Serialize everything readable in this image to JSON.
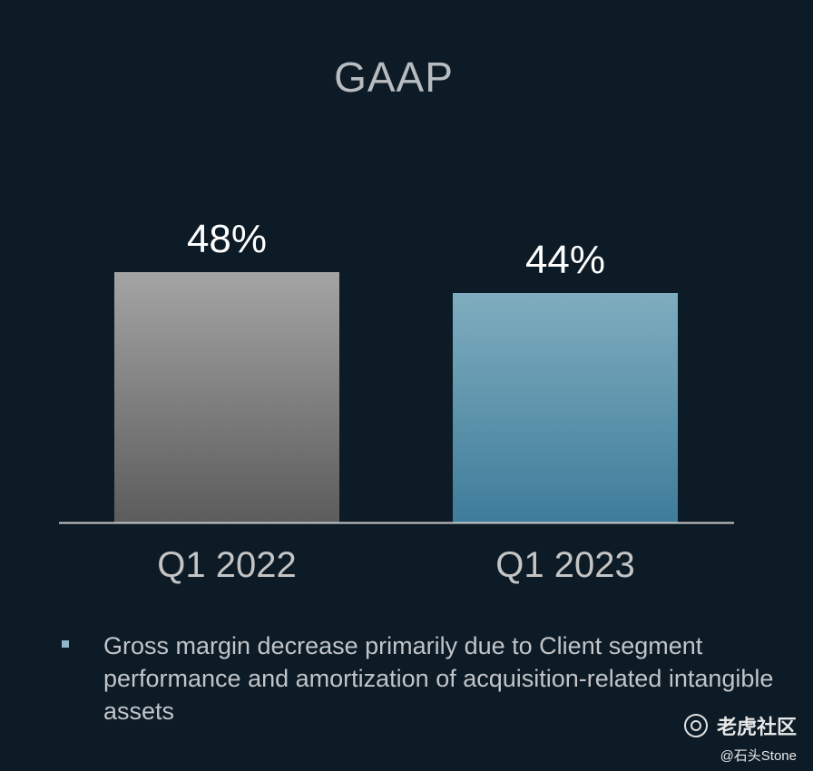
{
  "chart_data": {
    "type": "bar",
    "title": "GAAP",
    "categories": [
      "Q1 2022",
      "Q1 2023"
    ],
    "values": [
      48,
      44
    ],
    "value_labels": [
      "48%",
      "44%"
    ],
    "unit": "%",
    "ylim": [
      0,
      48
    ],
    "grid": false,
    "legend": "none",
    "colors": {
      "Q1 2022": [
        "#a4a4a4",
        "#5c5c5c"
      ],
      "Q1 2023": [
        "#7fadbf",
        "#3e7c9a"
      ],
      "axis": "#c8c8c8",
      "value_label": "#ffffff",
      "category_label": "#c4c4c4"
    }
  },
  "note": {
    "text": "Gross margin decrease primarily due to Client segment performance and amortization of acquisition-related intangible assets"
  },
  "watermark": {
    "icon": "tiger-logo-icon",
    "name": "老虎社区",
    "user": "@石头Stone"
  }
}
